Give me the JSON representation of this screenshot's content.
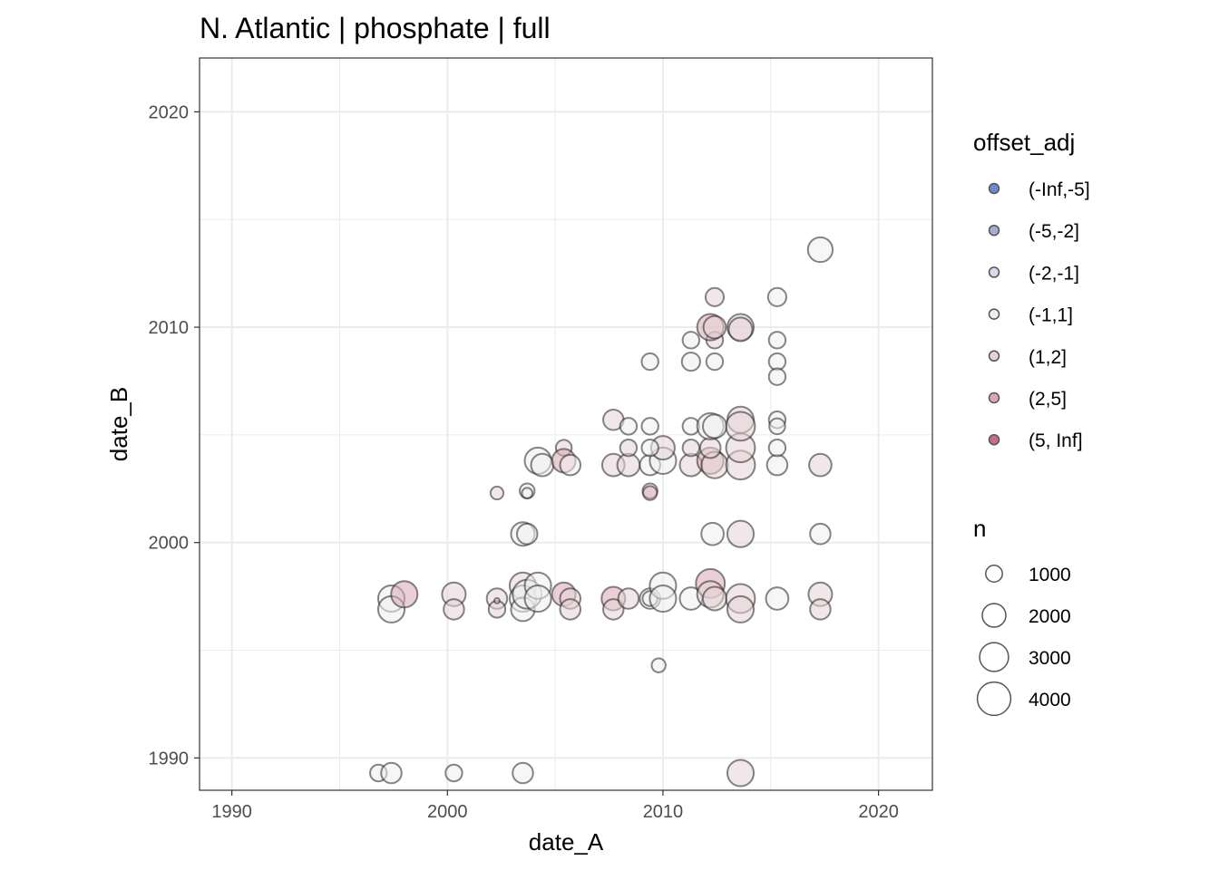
{
  "chart_data": {
    "type": "scatter",
    "title": "N. Atlantic | phosphate | full",
    "xlabel": "date_A",
    "ylabel": "date_B",
    "xlim": [
      1988.5,
      2022.5
    ],
    "ylim": [
      1988.5,
      2022.5
    ],
    "xticks": [
      1990,
      2000,
      2010,
      2020
    ],
    "yticks": [
      1990,
      2000,
      2010,
      2020
    ],
    "xtick_labels": [
      "1990",
      "2000",
      "2010",
      "2020"
    ],
    "ytick_labels": [
      "1990",
      "2000",
      "2010",
      "2020"
    ],
    "grid": true,
    "color_legend": {
      "title": "offset_adj",
      "entries": [
        {
          "label": "(-Inf,-5]",
          "color": "#7189c5"
        },
        {
          "label": "(-5,-2]",
          "color": "#a8aed0"
        },
        {
          "label": "(-2,-1]",
          "color": "#d9dbe8"
        },
        {
          "label": "(-1,1]",
          "color": "#efefef"
        },
        {
          "label": "(1,2]",
          "color": "#e6d3d7"
        },
        {
          "label": "(2,5]",
          "color": "#d9aab5"
        },
        {
          "label": "(5, Inf]",
          "color": "#c56d8a"
        }
      ]
    },
    "size_legend": {
      "title": "n",
      "entries": [
        {
          "label": "1000",
          "n": 1000
        },
        {
          "label": "2000",
          "n": 2000
        },
        {
          "label": "3000",
          "n": 3000
        },
        {
          "label": "4000",
          "n": 4000
        }
      ]
    },
    "points_fields": [
      "date_A",
      "date_B",
      "n",
      "offset_adj"
    ],
    "points": [
      [
        1996.8,
        1989.3,
        1000,
        "(-1,1]"
      ],
      [
        1997.4,
        1989.3,
        1500,
        "(-1,1]"
      ],
      [
        2000.3,
        1989.3,
        1000,
        "(-1,1]"
      ],
      [
        2003.5,
        1989.3,
        1500,
        "(-1,1]"
      ],
      [
        2013.6,
        1989.3,
        2500,
        "(1,2]"
      ],
      [
        2009.8,
        1994.3,
        700,
        "(-1,1]"
      ],
      [
        1997.4,
        1997.4,
        2500,
        "(-1,1]"
      ],
      [
        1997.4,
        1996.9,
        2500,
        "(-1,1]"
      ],
      [
        1998.0,
        1997.6,
        2500,
        "(2,5]"
      ],
      [
        2000.3,
        1997.6,
        2000,
        "(1,2]"
      ],
      [
        2000.3,
        1996.9,
        1500,
        "(1,2]"
      ],
      [
        2002.3,
        1997.4,
        1500,
        "(1,2]"
      ],
      [
        2002.3,
        1996.9,
        1000,
        "(1,2]"
      ],
      [
        2002.3,
        1997.3,
        100,
        "(1,2]"
      ],
      [
        2003.5,
        1998.0,
        2500,
        "(1,2]"
      ],
      [
        2003.5,
        1997.4,
        2500,
        "(-1,1]"
      ],
      [
        2003.5,
        1996.9,
        2000,
        "(-1,1]"
      ],
      [
        2003.7,
        1997.6,
        3000,
        "(-1,1]"
      ],
      [
        2004.2,
        1998.0,
        2500,
        "(-1,1]"
      ],
      [
        2004.2,
        1997.4,
        2500,
        "(-1,1]"
      ],
      [
        2005.4,
        1997.6,
        2000,
        "(2,5]"
      ],
      [
        2005.7,
        1997.4,
        1500,
        "(1,2]"
      ],
      [
        2005.7,
        1996.9,
        1500,
        "(1,2]"
      ],
      [
        2007.7,
        1997.4,
        2000,
        "(2,5]"
      ],
      [
        2007.7,
        1996.9,
        1500,
        "(1,2]"
      ],
      [
        2008.4,
        1997.4,
        1500,
        "(1,2]"
      ],
      [
        2009.4,
        1997.4,
        1500,
        "(-1,1]"
      ],
      [
        2009.4,
        1997.4,
        800,
        "(-1,1]"
      ],
      [
        2010.0,
        1998.0,
        2500,
        "(-1,1]"
      ],
      [
        2010.0,
        1997.4,
        2500,
        "(-1,1]"
      ],
      [
        2011.3,
        1997.4,
        1800,
        "(-1,1]"
      ],
      [
        2012.2,
        1998.1,
        3000,
        "(2,5]"
      ],
      [
        2012.2,
        1997.6,
        2500,
        "(1,2]"
      ],
      [
        2012.4,
        1997.4,
        2000,
        "(1,2]"
      ],
      [
        2013.6,
        1997.4,
        3000,
        "(1,2]"
      ],
      [
        2013.6,
        1996.9,
        2500,
        "(1,2]"
      ],
      [
        2015.3,
        1997.4,
        1800,
        "(-1,1]"
      ],
      [
        2017.3,
        1997.6,
        2000,
        "(1,2]"
      ],
      [
        2017.3,
        1996.9,
        1500,
        "(1,2]"
      ],
      [
        2003.5,
        2000.4,
        2000,
        "(-1,1]"
      ],
      [
        2003.7,
        2000.4,
        1500,
        "(-1,1]"
      ],
      [
        2012.3,
        2000.4,
        1800,
        "(-1,1]"
      ],
      [
        2013.6,
        2000.4,
        2500,
        "(1,2]"
      ],
      [
        2017.3,
        2000.4,
        1500,
        "(-1,1]"
      ],
      [
        2002.3,
        2002.3,
        600,
        "(1,2]"
      ],
      [
        2003.7,
        2002.4,
        800,
        "(-1,1]"
      ],
      [
        2003.7,
        2002.3,
        400,
        "(-1,1]"
      ],
      [
        2009.4,
        2002.4,
        800,
        "(-1,1]"
      ],
      [
        2009.4,
        2002.3,
        700,
        "(2,5]"
      ],
      [
        2004.2,
        2003.8,
        2500,
        "(-1,1]"
      ],
      [
        2004.4,
        2003.6,
        1800,
        "(-1,1]"
      ],
      [
        2005.4,
        2004.4,
        900,
        "(1,2]"
      ],
      [
        2005.4,
        2003.8,
        2000,
        "(2,5]"
      ],
      [
        2005.7,
        2003.6,
        1500,
        "(-1,1]"
      ],
      [
        2007.7,
        2003.6,
        1800,
        "(1,2]"
      ],
      [
        2008.4,
        2003.6,
        1800,
        "(1,2]"
      ],
      [
        2009.4,
        2003.6,
        1500,
        "(-1,1]"
      ],
      [
        2010.0,
        2003.8,
        2500,
        "(-1,1]"
      ],
      [
        2010.0,
        2004.4,
        2000,
        "(1,2]"
      ],
      [
        2011.3,
        2003.6,
        1800,
        "(1,2]"
      ],
      [
        2012.2,
        2003.8,
        2500,
        "(2,5]"
      ],
      [
        2012.4,
        2003.6,
        2500,
        "(1,2]"
      ],
      [
        2013.6,
        2003.6,
        3000,
        "(1,2]"
      ],
      [
        2013.6,
        2004.4,
        3000,
        "(1,2]"
      ],
      [
        2015.3,
        2003.6,
        1500,
        "(-1,1]"
      ],
      [
        2017.3,
        2003.6,
        1800,
        "(1,2]"
      ],
      [
        2008.4,
        2004.4,
        1000,
        "(1,2]"
      ],
      [
        2009.4,
        2004.4,
        1000,
        "(-1,1]"
      ],
      [
        2011.3,
        2004.4,
        1000,
        "(1,2]"
      ],
      [
        2012.2,
        2004.4,
        1500,
        "(1,2]"
      ],
      [
        2015.3,
        2004.4,
        1000,
        "(-1,1]"
      ],
      [
        2007.7,
        2005.7,
        1500,
        "(1,2]"
      ],
      [
        2008.4,
        2005.4,
        1000,
        "(-1,1]"
      ],
      [
        2009.4,
        2005.4,
        1000,
        "(-1,1]"
      ],
      [
        2011.3,
        2005.4,
        1000,
        "(-1,1]"
      ],
      [
        2012.2,
        2005.4,
        2500,
        "(-1,1]"
      ],
      [
        2012.4,
        2005.4,
        2000,
        "(-1,1]"
      ],
      [
        2013.6,
        2005.7,
        2500,
        "(1,2]"
      ],
      [
        2013.6,
        2005.4,
        3000,
        "(1,2]"
      ],
      [
        2015.3,
        2005.7,
        1000,
        "(-1,1]"
      ],
      [
        2015.3,
        2005.4,
        900,
        "(-1,1]"
      ],
      [
        2009.4,
        2008.4,
        1000,
        "(-1,1]"
      ],
      [
        2011.3,
        2008.4,
        1200,
        "(-1,1]"
      ],
      [
        2012.4,
        2008.4,
        1000,
        "(-1,1]"
      ],
      [
        2015.3,
        2008.4,
        1000,
        "(-1,1]"
      ],
      [
        2015.3,
        2007.7,
        1000,
        "(-1,1]"
      ],
      [
        2011.3,
        2009.4,
        1000,
        "(-1,1]"
      ],
      [
        2012.4,
        2009.4,
        1000,
        "(1,2]"
      ],
      [
        2015.3,
        2009.4,
        1000,
        "(-1,1]"
      ],
      [
        2012.2,
        2010.0,
        2500,
        "(2,5]"
      ],
      [
        2012.4,
        2010.0,
        1800,
        "(1,2]"
      ],
      [
        2013.6,
        2010.0,
        2500,
        "(1,2]"
      ],
      [
        2013.6,
        2009.9,
        2000,
        "(1,2]"
      ],
      [
        2012.4,
        2011.4,
        1200,
        "(1,2]"
      ],
      [
        2015.3,
        2011.4,
        1200,
        "(-1,1]"
      ],
      [
        2017.3,
        2013.6,
        2200,
        "(-1,1]"
      ]
    ]
  }
}
